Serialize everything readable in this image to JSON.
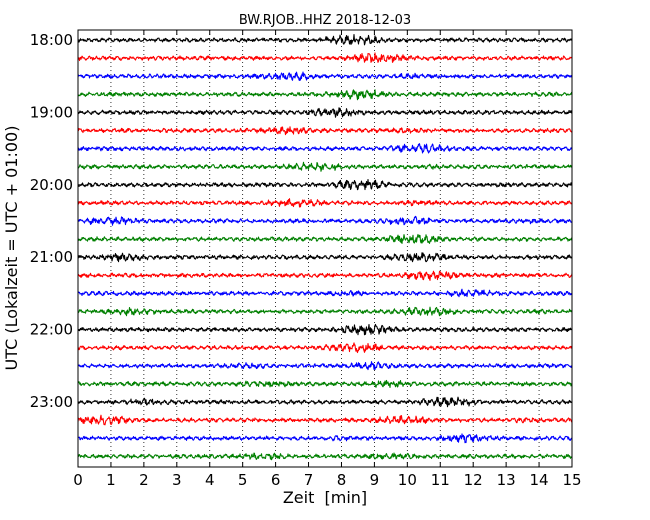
{
  "chart_data": {
    "type": "line",
    "title": "BW.RJOB..HHZ 2018-12-03",
    "xlabel": "Zeit  [min]",
    "ylabel": "UTC (Lokalzeit = UTC + 01:00)",
    "xlim": [
      0,
      15
    ],
    "x_ticks": [
      "0",
      "1",
      "2",
      "3",
      "4",
      "5",
      "6",
      "7",
      "8",
      "9",
      "10",
      "11",
      "12",
      "13",
      "14",
      "15"
    ],
    "y_ticks": [
      "18:00",
      "19:00",
      "20:00",
      "21:00",
      "22:00",
      "23:00"
    ],
    "grid": "vertical-dotted",
    "trace_interval_min": 15,
    "trace_start": "18:00",
    "trace_count": 24,
    "trace_colors": [
      "#000000",
      "#ff0000",
      "#0000ff",
      "#008000"
    ]
  }
}
